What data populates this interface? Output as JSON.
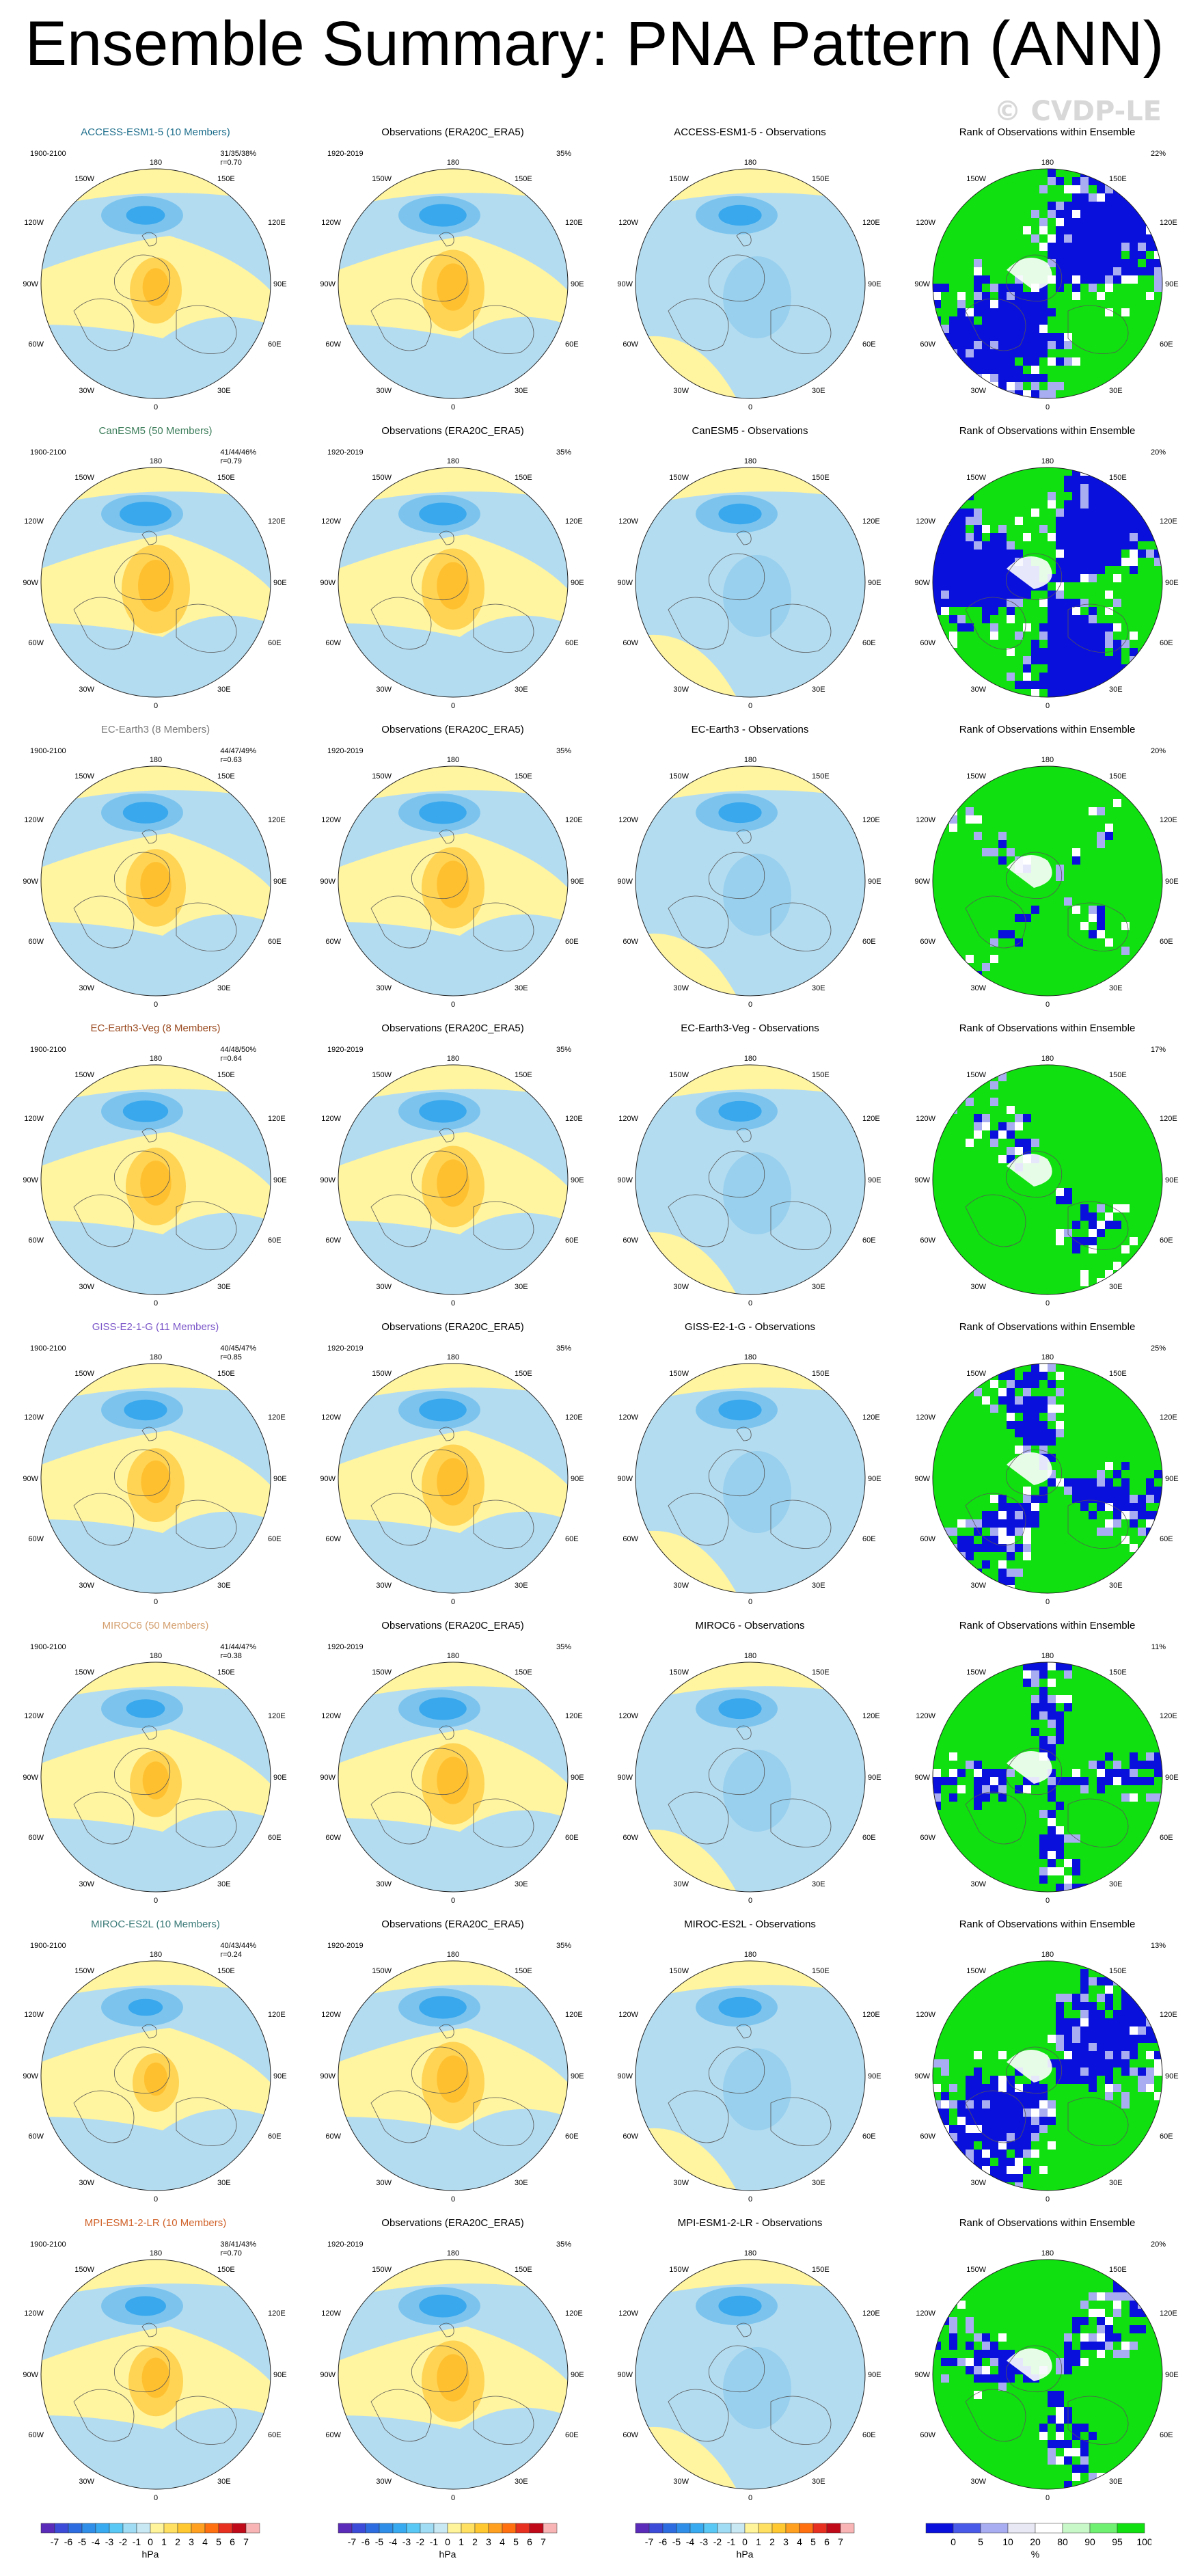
{
  "title": "Ensemble Summary: PNA Pattern (ANN)",
  "watermark": "© CVDP-LE",
  "panel_titles": {
    "obs": "Observations (ERA20C_ERA5)",
    "rank": "Rank of Observations within Ensemble",
    "diff_suffix": " - Observations"
  },
  "years": {
    "model": "1900-2100",
    "obs": "1920-2019"
  },
  "lon_labels": {
    "top": "180",
    "ul": "150W",
    "ur": "150E",
    "l1": "120W",
    "r1": "120E",
    "l2": "90W",
    "r2": "90E",
    "l3": "60W",
    "r3": "60E",
    "ll": "30W",
    "lr": "30E",
    "bottom": "0"
  },
  "obs_pct": "35%",
  "models": [
    {
      "name": "ACCESS-ESM1-5",
      "header": "ACCESS-ESM1-5 (10 Members)",
      "color": "#1e6e8c",
      "stats": "31/35/38%",
      "r": "r=0.70",
      "rank_pct": "22%",
      "rank_pattern": 0,
      "mean_strength": 0.7
    },
    {
      "name": "CanESM5",
      "header": "CanESM5 (50 Members)",
      "color": "#3c7d5a",
      "stats": "41/44/46%",
      "r": "r=0.79",
      "rank_pct": "20%",
      "rank_pattern": 1,
      "mean_strength": 1.0
    },
    {
      "name": "EC-Earth3",
      "header": "EC-Earth3 (8 Members)",
      "color": "#7a7a7a",
      "stats": "44/47/49%",
      "r": "r=0.63",
      "rank_pct": "20%",
      "rank_pattern": 2,
      "mean_strength": 0.85
    },
    {
      "name": "EC-Earth3-Veg",
      "header": "EC-Earth3-Veg (8 Members)",
      "color": "#9a4a20",
      "stats": "44/48/50%",
      "r": "r=0.64",
      "rank_pct": "17%",
      "rank_pattern": 3,
      "mean_strength": 0.85
    },
    {
      "name": "GISS-E2-1-G",
      "header": "GISS-E2-1-G (11 Members)",
      "color": "#7a55c8",
      "stats": "40/45/47%",
      "r": "r=0.85",
      "rank_pct": "25%",
      "rank_pattern": 4,
      "mean_strength": 0.8
    },
    {
      "name": "MIROC6",
      "header": "MIROC6 (50 Members)",
      "color": "#d4a070",
      "stats": "41/44/47%",
      "r": "r=0.38",
      "rank_pct": "11%",
      "rank_pattern": 5,
      "mean_strength": 0.7
    },
    {
      "name": "MIROC-ES2L",
      "header": "MIROC-ES2L (10 Members)",
      "color": "#3a7a78",
      "stats": "40/43/44%",
      "r": "r=0.24",
      "rank_pct": "13%",
      "rank_pattern": 6,
      "mean_strength": 0.6
    },
    {
      "name": "MPI-ESM1-2-LR",
      "header": "MPI-ESM1-2-LR (10 Members)",
      "color": "#d0622a",
      "stats": "38/41/43%",
      "r": "r=0.70",
      "rank_pct": "20%",
      "rank_pattern": 7,
      "mean_strength": 0.75
    }
  ],
  "colorbar_hpa": {
    "ticks": [
      "-7",
      "-6",
      "-5",
      "-4",
      "-3",
      "-2",
      "-1",
      "0",
      "1",
      "2",
      "3",
      "4",
      "5",
      "6",
      "7"
    ],
    "unit": "hPa",
    "colors": [
      "#5a2ab8",
      "#3c4cd8",
      "#2c6ce0",
      "#2e8ee8",
      "#38aaf0",
      "#5ac8f4",
      "#a0dcf4",
      "#c8e8f4",
      "#fff49a",
      "#ffe060",
      "#ffc830",
      "#ffa020",
      "#ff7010",
      "#e83020",
      "#c00a1a",
      "#f8b4b4"
    ]
  },
  "colorbar_rank": {
    "ticks": [
      "0",
      "5",
      "10",
      "20",
      "80",
      "90",
      "95",
      "100"
    ],
    "unit": "%",
    "colors": [
      "#0a10dc",
      "#4a5ae8",
      "#a8acf0",
      "#e8e8f4",
      "#ffffff",
      "#c8f8c8",
      "#70f070",
      "#10e010"
    ]
  },
  "chart_data": {
    "type": "heatmap",
    "title": "Ensemble Summary: PNA Pattern (ANN)",
    "layout": "8 model rows x 4 columns (ensemble mean, observations, difference, rank)",
    "units": "hPa",
    "colorbar_levels": [
      -7,
      -6,
      -5,
      -4,
      -3,
      -2,
      -1,
      0,
      1,
      2,
      3,
      4,
      5,
      6,
      7
    ],
    "rank_levels_percent": [
      0,
      5,
      10,
      20,
      80,
      90,
      95,
      100
    ],
    "observations": {
      "dataset": "ERA20C_ERA5",
      "years": "1920-2019",
      "percent_variance": 35
    },
    "models": [
      {
        "name": "ACCESS-ESM1-5",
        "members": 10,
        "pct_variance": [
          31,
          35,
          38
        ],
        "pattern_r": 0.7,
        "rank_pct": 22
      },
      {
        "name": "CanESM5",
        "members": 50,
        "pct_variance": [
          41,
          44,
          46
        ],
        "pattern_r": 0.79,
        "rank_pct": 20
      },
      {
        "name": "EC-Earth3",
        "members": 8,
        "pct_variance": [
          44,
          47,
          49
        ],
        "pattern_r": 0.63,
        "rank_pct": 20
      },
      {
        "name": "EC-Earth3-Veg",
        "members": 8,
        "pct_variance": [
          44,
          48,
          50
        ],
        "pattern_r": 0.64,
        "rank_pct": 17
      },
      {
        "name": "GISS-E2-1-G",
        "members": 11,
        "pct_variance": [
          40,
          45,
          47
        ],
        "pattern_r": 0.85,
        "rank_pct": 25
      },
      {
        "name": "MIROC6",
        "members": 50,
        "pct_variance": [
          41,
          44,
          47
        ],
        "pattern_r": 0.38,
        "rank_pct": 11
      },
      {
        "name": "MIROC-ES2L",
        "members": 10,
        "pct_variance": [
          40,
          43,
          44
        ],
        "pattern_r": 0.24,
        "rank_pct": 13
      },
      {
        "name": "MPI-ESM1-2-LR",
        "members": 10,
        "pct_variance": [
          38,
          41,
          43
        ],
        "pattern_r": 0.7,
        "rank_pct": 20
      }
    ]
  }
}
